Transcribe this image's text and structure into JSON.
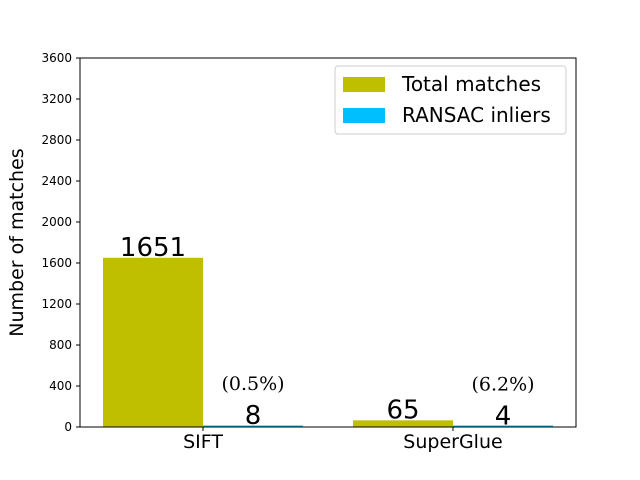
{
  "chart_data": {
    "type": "bar",
    "categories": [
      "SIFT",
      "SuperGlue"
    ],
    "series": [
      {
        "name": "Total matches",
        "values": [
          1651,
          65
        ],
        "color": "#bfbf00"
      },
      {
        "name": "RANSAC inliers",
        "values": [
          8,
          4
        ],
        "color": "#00bfff"
      }
    ],
    "value_labels": [
      {
        "category": "SIFT",
        "total": "1651",
        "inliers": "8",
        "percent": "(0.5%)"
      },
      {
        "category": "SuperGlue",
        "total": "65",
        "inliers": "4",
        "percent": "(6.2%)"
      }
    ],
    "xlabel": "",
    "ylabel": "Number of matches",
    "ylim": [
      0,
      3600
    ],
    "yticks": [
      0,
      400,
      800,
      1200,
      1600,
      2000,
      2400,
      2800,
      3200,
      3600
    ],
    "legend_position": "top-right",
    "grid": false
  }
}
